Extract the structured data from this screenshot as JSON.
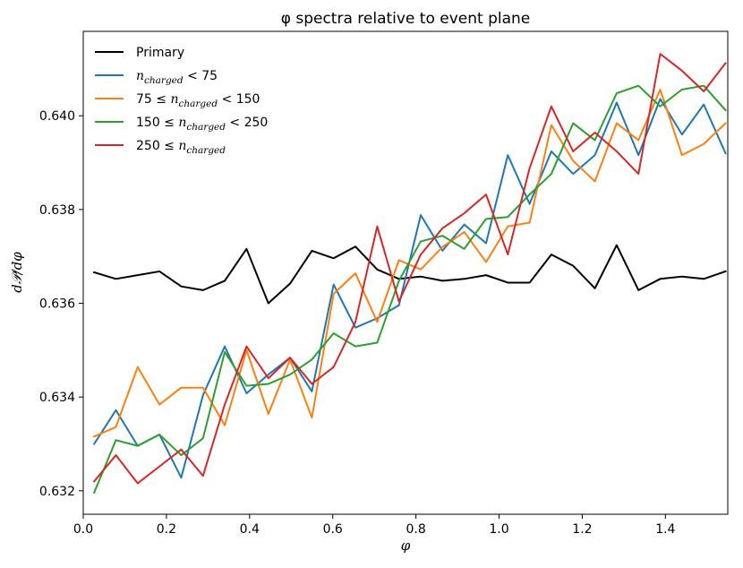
{
  "chart_data": {
    "type": "line",
    "title": "φ spectra relative to event plane",
    "xlabel": "φ",
    "ylabel": "d𝒫/dφ",
    "xlim": [
      0.0,
      1.55
    ],
    "ylim": [
      0.6315,
      0.6418
    ],
    "xticks": [
      0.0,
      0.2,
      0.4,
      0.6,
      0.8,
      1.0,
      1.2,
      1.4
    ],
    "xtick_labels": [
      "0.0",
      "0.2",
      "0.4",
      "0.6",
      "0.8",
      "1.0",
      "1.2",
      "1.4"
    ],
    "yticks": [
      0.632,
      0.634,
      0.636,
      0.638,
      0.64
    ],
    "ytick_labels": [
      "0.632",
      "0.634",
      "0.636",
      "0.638",
      "0.640"
    ],
    "legend_position": "top-left",
    "x": [
      0.0262,
      0.0785,
      0.1309,
      0.1833,
      0.2356,
      0.288,
      0.3403,
      0.3927,
      0.4451,
      0.4974,
      0.5498,
      0.6021,
      0.6545,
      0.7069,
      0.7592,
      0.8116,
      0.8639,
      0.9163,
      0.9687,
      1.021,
      1.0734,
      1.1257,
      1.1781,
      1.2305,
      1.2828,
      1.3352,
      1.3875,
      1.4399,
      1.4923,
      1.5446
    ],
    "series": [
      {
        "name": "Primary",
        "legend": {
          "pre": "Primary",
          "sub": "",
          "post": ""
        },
        "color": "#000000",
        "values": [
          0.63666,
          0.63652,
          0.6366,
          0.63668,
          0.63636,
          0.63628,
          0.63648,
          0.63716,
          0.636,
          0.63642,
          0.63712,
          0.63696,
          0.63721,
          0.63672,
          0.63652,
          0.63657,
          0.63648,
          0.63652,
          0.6366,
          0.63644,
          0.63644,
          0.63704,
          0.6368,
          0.63632,
          0.63724,
          0.63628,
          0.63652,
          0.63657,
          0.63652,
          0.63668
        ]
      },
      {
        "name": "n_charged < 75",
        "legend": {
          "pre": "n",
          "sub": "charged",
          "post": " < 75"
        },
        "color": "#1f77b4",
        "values": [
          0.633,
          0.63372,
          0.63296,
          0.6332,
          0.63228,
          0.63404,
          0.63508,
          0.63408,
          0.63448,
          0.63484,
          0.63412,
          0.6364,
          0.63548,
          0.63568,
          0.63596,
          0.63788,
          0.63712,
          0.63768,
          0.63728,
          0.63916,
          0.63812,
          0.63924,
          0.63876,
          0.63916,
          0.64028,
          0.63916,
          0.64036,
          0.6396,
          0.64024,
          0.6392
        ]
      },
      {
        "name": "75 ≤ n_charged < 150",
        "legend": {
          "pre": "75 ≤ n",
          "sub": "charged",
          "post": " < 150"
        },
        "color": "#ff7f0e",
        "values": [
          0.63316,
          0.63336,
          0.63464,
          0.63384,
          0.6342,
          0.6342,
          0.6334,
          0.635,
          0.63364,
          0.6348,
          0.63356,
          0.6362,
          0.63664,
          0.6356,
          0.63692,
          0.63672,
          0.6372,
          0.63752,
          0.63688,
          0.63764,
          0.63772,
          0.6398,
          0.63904,
          0.6386,
          0.63984,
          0.63948,
          0.64056,
          0.63916,
          0.6394,
          0.63984
        ]
      },
      {
        "name": "150 ≤ n_charged < 250",
        "legend": {
          "pre": "150 ≤ n",
          "sub": "charged",
          "post": " < 250"
        },
        "color": "#2ca02c",
        "values": [
          0.63196,
          0.63308,
          0.63296,
          0.6332,
          0.63276,
          0.63312,
          0.63496,
          0.63424,
          0.63428,
          0.63448,
          0.6348,
          0.63536,
          0.63508,
          0.63516,
          0.63648,
          0.63732,
          0.63744,
          0.63716,
          0.6378,
          0.63784,
          0.63832,
          0.63876,
          0.63984,
          0.63948,
          0.64048,
          0.64064,
          0.6402,
          0.64056,
          0.64064,
          0.64012
        ]
      },
      {
        "name": "250 ≤ n_charged",
        "legend": {
          "pre": "250 ≤ n",
          "sub": "charged",
          "post": ""
        },
        "color": "#d62728",
        "values": [
          0.6322,
          0.63276,
          0.63216,
          0.63252,
          0.63288,
          0.63232,
          0.63384,
          0.63508,
          0.6344,
          0.63484,
          0.63428,
          0.63464,
          0.6356,
          0.63764,
          0.63604,
          0.63704,
          0.6376,
          0.63792,
          0.63832,
          0.63704,
          0.63888,
          0.6402,
          0.63924,
          0.63964,
          0.63924,
          0.63876,
          0.64132,
          0.64096,
          0.64052,
          0.64112
        ]
      }
    ]
  }
}
